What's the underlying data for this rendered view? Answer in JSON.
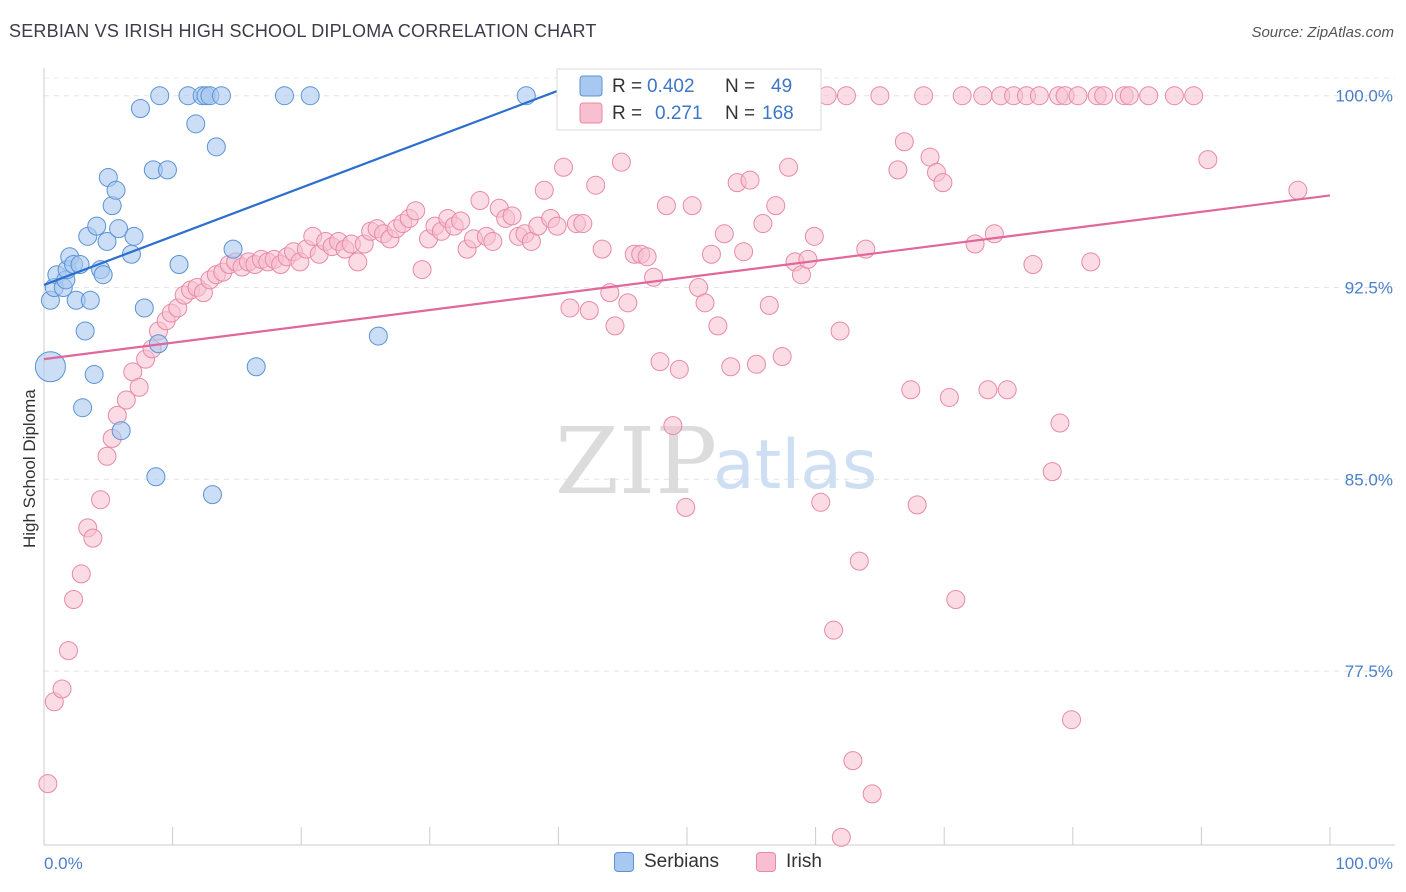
{
  "header": {
    "title": "SERBIAN VS IRISH HIGH SCHOOL DIPLOMA CORRELATION CHART",
    "source": "Source: ZipAtlas.com"
  },
  "watermark": {
    "zip": "ZIP",
    "atlas": "atlas"
  },
  "colors": {
    "serbians_fill": "#a9c8ef",
    "serbians_stroke": "#5a93d6",
    "serbians_line": "#2b6fcf",
    "irish_fill": "#f7bfd0",
    "irish_stroke": "#e889a8",
    "irish_line": "#e0679a",
    "axis_label": "#4a7fc9"
  },
  "legend": {
    "serbians": {
      "r_label": "R =",
      "r_value": "0.402",
      "n_label": "N =",
      "n_value": "49"
    },
    "irish": {
      "r_label": "R =",
      "r_value": "0.271",
      "n_label": "N =",
      "n_value": "168"
    }
  },
  "bottom_legend": {
    "serbians": "Serbians",
    "irish": "Irish"
  },
  "chart_data": {
    "type": "scatter",
    "title": "SERBIAN VS IRISH HIGH SCHOOL DIPLOMA CORRELATION CHART",
    "xlabel": "",
    "ylabel": "High School Diploma",
    "xlim": [
      0,
      100
    ],
    "ylim": [
      70.7,
      101.2
    ],
    "x_tick_labels": [
      "0.0%",
      "100.0%"
    ],
    "y_ticks": [
      77.5,
      85.0,
      92.5,
      100.0
    ],
    "y_tick_labels": [
      "77.5%",
      "85.0%",
      "92.5%",
      "100.0%"
    ],
    "series": [
      {
        "name": "Serbians",
        "r": 0.402,
        "n": 49,
        "trend": {
          "x": [
            0,
            40
          ],
          "y": [
            92.6,
            100.2
          ]
        },
        "points": [
          [
            0.5,
            89.4,
            15
          ],
          [
            0.5,
            92.0,
            9
          ],
          [
            0.8,
            92.5,
            9
          ],
          [
            1.0,
            93.0,
            9
          ],
          [
            1.5,
            92.5,
            9
          ],
          [
            1.7,
            92.8,
            9
          ],
          [
            1.8,
            93.2,
            9
          ],
          [
            2.0,
            93.7,
            9
          ],
          [
            2.3,
            93.4,
            9
          ],
          [
            2.5,
            92.0,
            9
          ],
          [
            2.8,
            93.4,
            9
          ],
          [
            3.0,
            87.8,
            9
          ],
          [
            3.2,
            90.8,
            9
          ],
          [
            3.4,
            94.5,
            9
          ],
          [
            3.6,
            92.0,
            9
          ],
          [
            3.9,
            89.1,
            9
          ],
          [
            4.1,
            94.9,
            9
          ],
          [
            4.4,
            93.2,
            9
          ],
          [
            4.6,
            93.0,
            9
          ],
          [
            4.9,
            94.3,
            9
          ],
          [
            5.0,
            96.8,
            9
          ],
          [
            5.3,
            95.7,
            9
          ],
          [
            5.6,
            96.3,
            9
          ],
          [
            5.8,
            94.8,
            9
          ],
          [
            6.0,
            86.9,
            9
          ],
          [
            6.8,
            93.8,
            9
          ],
          [
            7.0,
            94.5,
            9
          ],
          [
            7.5,
            99.5,
            9
          ],
          [
            7.8,
            91.7,
            9
          ],
          [
            8.5,
            97.1,
            9
          ],
          [
            8.7,
            85.1,
            9
          ],
          [
            8.9,
            90.3,
            9
          ],
          [
            9.0,
            100.0,
            9
          ],
          [
            9.6,
            97.1,
            9
          ],
          [
            10.5,
            93.4,
            9
          ],
          [
            11.2,
            100.0,
            9
          ],
          [
            11.8,
            98.9,
            9
          ],
          [
            12.3,
            100.0,
            9
          ],
          [
            12.6,
            100.0,
            9
          ],
          [
            12.9,
            100.0,
            9
          ],
          [
            13.1,
            84.4,
            9
          ],
          [
            13.4,
            98.0,
            9
          ],
          [
            13.8,
            100.0,
            9
          ],
          [
            14.7,
            94.0,
            9
          ],
          [
            16.5,
            89.4,
            9
          ],
          [
            18.7,
            100.0,
            9
          ],
          [
            20.7,
            100.0,
            9
          ],
          [
            26.0,
            90.6,
            9
          ],
          [
            37.5,
            100.0,
            9
          ]
        ]
      },
      {
        "name": "Irish",
        "r": 0.271,
        "n": 168,
        "trend": {
          "x": [
            0,
            100
          ],
          "y": [
            89.7,
            96.1
          ]
        },
        "points": [
          [
            0.3,
            73.1
          ],
          [
            0.8,
            76.3
          ],
          [
            1.4,
            76.8
          ],
          [
            1.9,
            78.3
          ],
          [
            2.3,
            80.3
          ],
          [
            2.9,
            81.3
          ],
          [
            3.4,
            83.1
          ],
          [
            3.8,
            82.7
          ],
          [
            4.4,
            84.2
          ],
          [
            4.9,
            85.9
          ],
          [
            5.3,
            86.6
          ],
          [
            5.7,
            87.5
          ],
          [
            6.4,
            88.1
          ],
          [
            6.9,
            89.2
          ],
          [
            7.4,
            88.6
          ],
          [
            7.9,
            89.7
          ],
          [
            8.4,
            90.1
          ],
          [
            8.9,
            90.8
          ],
          [
            9.5,
            91.2
          ],
          [
            9.9,
            91.5
          ],
          [
            10.4,
            91.7
          ],
          [
            10.9,
            92.2
          ],
          [
            11.4,
            92.4
          ],
          [
            11.9,
            92.5
          ],
          [
            12.4,
            92.3
          ],
          [
            12.9,
            92.8
          ],
          [
            13.4,
            93.0
          ],
          [
            13.9,
            93.1
          ],
          [
            14.4,
            93.4
          ],
          [
            14.9,
            93.5
          ],
          [
            15.4,
            93.3
          ],
          [
            15.9,
            93.5
          ],
          [
            16.4,
            93.4
          ],
          [
            16.9,
            93.6
          ],
          [
            17.4,
            93.5
          ],
          [
            17.9,
            93.6
          ],
          [
            18.4,
            93.4
          ],
          [
            18.9,
            93.7
          ],
          [
            19.4,
            93.9
          ],
          [
            19.9,
            93.5
          ],
          [
            20.4,
            94.0
          ],
          [
            20.9,
            94.5
          ],
          [
            21.4,
            93.8
          ],
          [
            21.9,
            94.3
          ],
          [
            22.4,
            94.1
          ],
          [
            22.9,
            94.3
          ],
          [
            23.4,
            94.0
          ],
          [
            23.9,
            94.2
          ],
          [
            24.4,
            93.5
          ],
          [
            24.9,
            94.2
          ],
          [
            25.4,
            94.7
          ],
          [
            25.9,
            94.8
          ],
          [
            26.4,
            94.6
          ],
          [
            26.9,
            94.4
          ],
          [
            27.4,
            94.8
          ],
          [
            27.9,
            95.0
          ],
          [
            28.4,
            95.2
          ],
          [
            28.9,
            95.5
          ],
          [
            29.4,
            93.2
          ],
          [
            29.9,
            94.4
          ],
          [
            30.4,
            94.9
          ],
          [
            30.9,
            94.7
          ],
          [
            31.4,
            95.2
          ],
          [
            31.9,
            94.9
          ],
          [
            32.4,
            95.1
          ],
          [
            32.9,
            94.0
          ],
          [
            33.4,
            94.4
          ],
          [
            33.9,
            95.9
          ],
          [
            34.4,
            94.5
          ],
          [
            34.9,
            94.3
          ],
          [
            35.4,
            95.6
          ],
          [
            35.9,
            95.2
          ],
          [
            36.4,
            95.3
          ],
          [
            36.9,
            94.5
          ],
          [
            37.4,
            94.6
          ],
          [
            37.9,
            94.3
          ],
          [
            38.4,
            94.9
          ],
          [
            38.9,
            96.3
          ],
          [
            39.4,
            95.2
          ],
          [
            39.9,
            94.9
          ],
          [
            40.4,
            97.2
          ],
          [
            40.9,
            91.7
          ],
          [
            41.4,
            95.0
          ],
          [
            41.9,
            95.0
          ],
          [
            42.4,
            91.6
          ],
          [
            42.9,
            96.5
          ],
          [
            43.4,
            94.0
          ],
          [
            44.0,
            92.3
          ],
          [
            44.4,
            91.0
          ],
          [
            44.9,
            97.4
          ],
          [
            45.4,
            91.9
          ],
          [
            45.9,
            93.8
          ],
          [
            46.4,
            93.8
          ],
          [
            46.9,
            93.7
          ],
          [
            47.4,
            92.9
          ],
          [
            47.9,
            89.6
          ],
          [
            48.4,
            95.7
          ],
          [
            48.9,
            87.1
          ],
          [
            49.4,
            89.3
          ],
          [
            49.9,
            83.9
          ],
          [
            50.4,
            95.7
          ],
          [
            50.9,
            92.5
          ],
          [
            51.4,
            91.9
          ],
          [
            51.9,
            93.8
          ],
          [
            52.4,
            91.0
          ],
          [
            52.9,
            94.6
          ],
          [
            53.4,
            89.4
          ],
          [
            53.9,
            96.6
          ],
          [
            54.4,
            93.9
          ],
          [
            54.9,
            96.7
          ],
          [
            55.4,
            89.5
          ],
          [
            55.9,
            95.0
          ],
          [
            56.4,
            91.8
          ],
          [
            56.9,
            95.7
          ],
          [
            57.4,
            89.8
          ],
          [
            57.9,
            97.2
          ],
          [
            58.4,
            93.5
          ],
          [
            58.9,
            93.0
          ],
          [
            59.4,
            93.6
          ],
          [
            59.9,
            94.5
          ],
          [
            60.4,
            84.1
          ],
          [
            60.9,
            100.0
          ],
          [
            61.4,
            79.1
          ],
          [
            61.9,
            90.8
          ],
          [
            62.4,
            100.0
          ],
          [
            62.9,
            74.0
          ],
          [
            63.4,
            81.8
          ],
          [
            63.9,
            94.0
          ],
          [
            64.4,
            72.7
          ],
          [
            65.0,
            100.0
          ],
          [
            66.4,
            97.1
          ],
          [
            66.9,
            98.2
          ],
          [
            67.4,
            88.5
          ],
          [
            67.9,
            84.0
          ],
          [
            68.4,
            100.0
          ],
          [
            68.9,
            97.6
          ],
          [
            69.4,
            97.0
          ],
          [
            69.9,
            96.6
          ],
          [
            70.4,
            88.2
          ],
          [
            70.9,
            80.3
          ],
          [
            71.4,
            100.0
          ],
          [
            72.4,
            94.2
          ],
          [
            73.0,
            100.0
          ],
          [
            73.4,
            88.5
          ],
          [
            73.9,
            94.6
          ],
          [
            74.4,
            100.0
          ],
          [
            74.9,
            88.5
          ],
          [
            75.4,
            100.0
          ],
          [
            76.4,
            100.0
          ],
          [
            76.9,
            93.4
          ],
          [
            77.4,
            100.0
          ],
          [
            78.4,
            85.3
          ],
          [
            78.9,
            100.0
          ],
          [
            79.4,
            100.0
          ],
          [
            79.9,
            75.6
          ],
          [
            80.4,
            100.0
          ],
          [
            81.4,
            93.5
          ],
          [
            81.9,
            100.0
          ],
          [
            82.4,
            100.0
          ],
          [
            84.0,
            100.0
          ],
          [
            84.4,
            100.0
          ],
          [
            85.9,
            100.0
          ],
          [
            87.9,
            100.0
          ],
          [
            89.4,
            100.0
          ],
          [
            90.5,
            97.5
          ],
          [
            97.5,
            96.3
          ],
          [
            62.0,
            71.0
          ],
          [
            79.0,
            87.2
          ]
        ]
      }
    ]
  }
}
